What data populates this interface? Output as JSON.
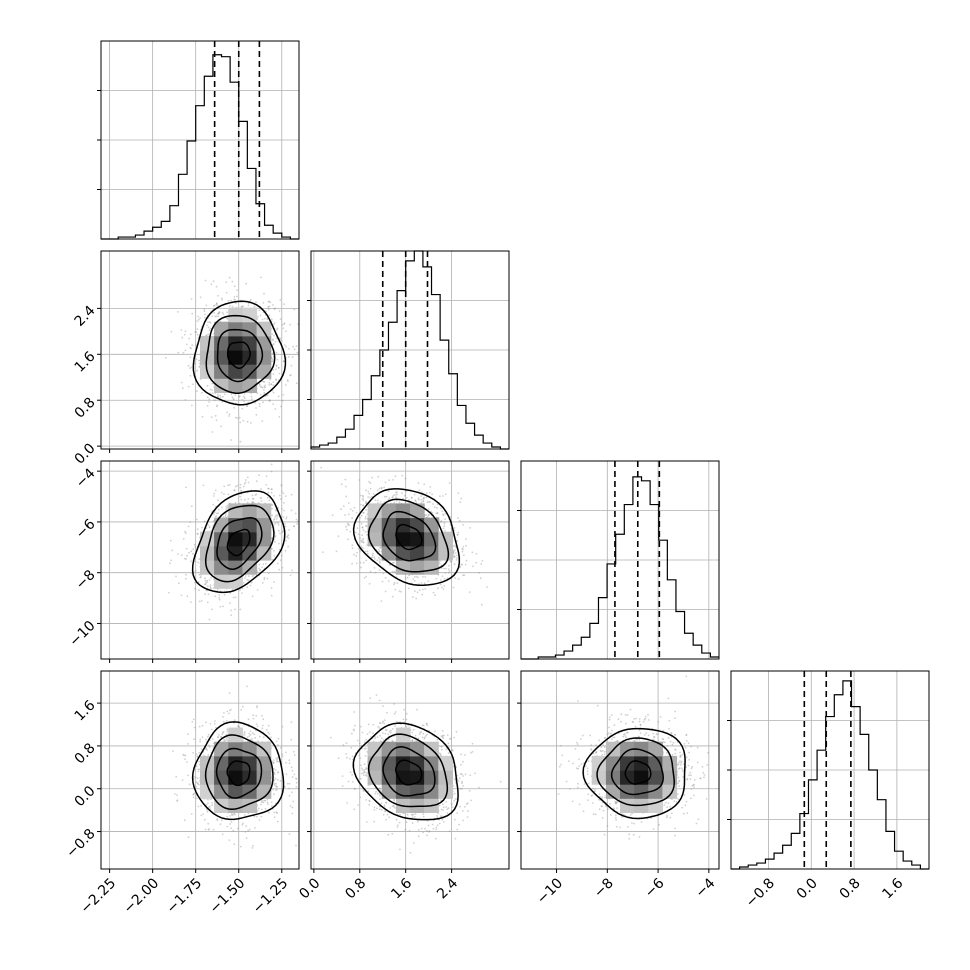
{
  "chart_data": {
    "type": "corner",
    "n_params": 4,
    "quantiles": [
      0.16,
      0.5,
      0.84
    ],
    "grid": true,
    "params": [
      {
        "range": [
          -2.3,
          -1.15
        ],
        "ticks": [
          -2.25,
          -2.0,
          -1.75,
          -1.5,
          -1.25
        ],
        "tick_labels": [
          "−2.25",
          "−2.00",
          "−1.75",
          "−1.50",
          "−1.25"
        ],
        "quantile_values": [
          -1.64,
          -1.5,
          -1.38
        ],
        "hist": [
          0,
          0,
          1,
          1,
          2,
          4,
          6,
          9,
          17,
          33,
          50,
          68,
          83,
          94,
          93,
          80,
          60,
          36,
          18,
          7,
          3,
          1,
          0
        ],
        "hist_ymax": 101
      },
      {
        "range": [
          -0.05,
          3.4
        ],
        "ticks": [
          0.0,
          0.8,
          1.6,
          2.4
        ],
        "tick_labels": [
          "0.0",
          "0.8",
          "1.6",
          "2.4"
        ],
        "quantile_values": [
          1.2,
          1.6,
          1.98
        ],
        "hist": [
          1,
          2,
          3,
          6,
          10,
          17,
          25,
          37,
          50,
          64,
          80,
          95,
          100,
          92,
          78,
          55,
          38,
          22,
          13,
          7,
          3,
          1,
          0
        ],
        "hist_ymax": 100
      },
      {
        "range": [
          -11.4,
          -3.6
        ],
        "ticks": [
          -10,
          -8,
          -6,
          -4
        ],
        "tick_labels": [
          "−10",
          "−8",
          "−6",
          "−4"
        ],
        "quantile_values": [
          -7.7,
          -6.8,
          -5.95
        ],
        "hist": [
          0,
          0,
          1,
          1,
          2,
          4,
          7,
          11,
          18,
          31,
          48,
          63,
          78,
          92,
          90,
          78,
          60,
          40,
          24,
          13,
          7,
          3,
          1
        ],
        "hist_ymax": 100
      },
      {
        "range": [
          -1.5,
          2.2
        ],
        "ticks": [
          -0.8,
          0.0,
          0.8,
          1.6
        ],
        "tick_labels": [
          "−0.8",
          "0.0",
          "0.8",
          "1.6"
        ],
        "quantile_values": [
          -0.13,
          0.28,
          0.74
        ],
        "hist": [
          0,
          1,
          2,
          3,
          5,
          8,
          12,
          18,
          28,
          45,
          60,
          77,
          88,
          95,
          82,
          68,
          50,
          35,
          19,
          9,
          4,
          2,
          0
        ],
        "hist_ymax": 100
      }
    ],
    "pairs": [
      {
        "x": 0,
        "y": 1,
        "center": [
          -1.5,
          1.6
        ],
        "sd": [
          0.13,
          0.45
        ],
        "rho": 0.0
      },
      {
        "x": 0,
        "y": 2,
        "center": [
          -1.5,
          -6.8
        ],
        "sd": [
          0.13,
          1.0
        ],
        "rho": 0.35
      },
      {
        "x": 1,
        "y": 2,
        "center": [
          1.65,
          -6.6
        ],
        "sd": [
          0.45,
          0.95
        ],
        "rho": -0.25
      },
      {
        "x": 0,
        "y": 3,
        "center": [
          -1.5,
          0.3
        ],
        "sd": [
          0.13,
          0.45
        ],
        "rho": 0.0
      },
      {
        "x": 1,
        "y": 3,
        "center": [
          1.65,
          0.3
        ],
        "sd": [
          0.45,
          0.45
        ],
        "rho": -0.2
      },
      {
        "x": 2,
        "y": 3,
        "center": [
          -6.8,
          0.3
        ],
        "sd": [
          1.0,
          0.42
        ],
        "rho": 0.0
      }
    ],
    "contour_levels_sigma": [
      0.5,
      1.0,
      1.5,
      2.0
    ]
  }
}
